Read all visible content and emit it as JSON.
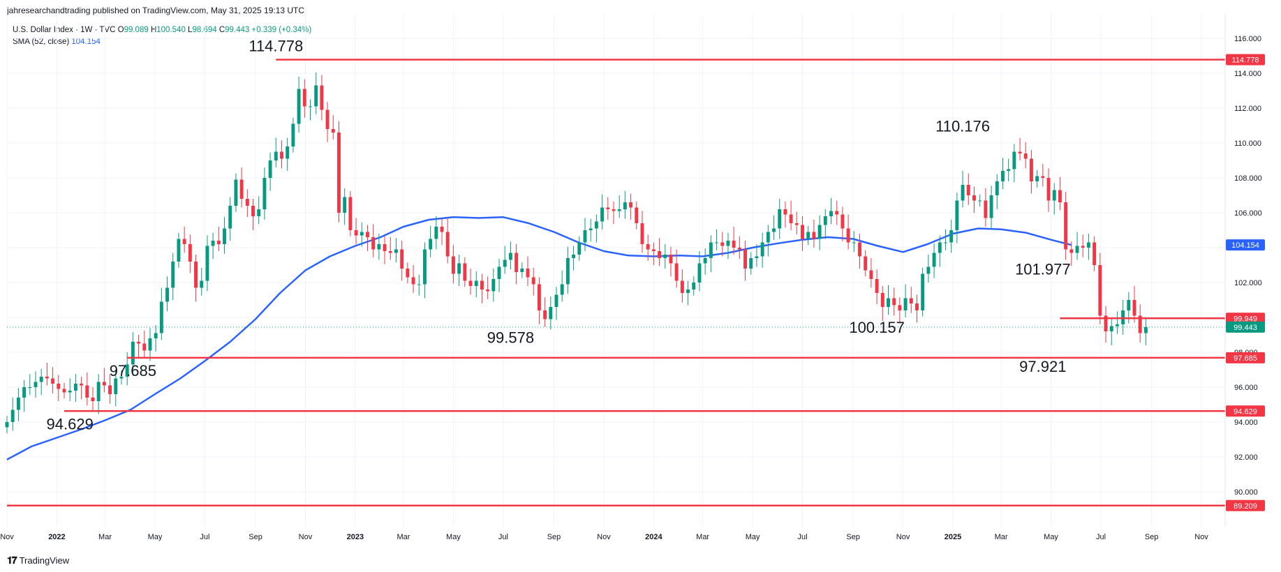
{
  "header": {
    "published": "jahresearchandtrading published on TradingView.com, May 31, 2025 19:13 UTC"
  },
  "legend": {
    "symbol": "U.S. Dollar Index · 1W · TVC",
    "open_label": "O",
    "open": "99.089",
    "high_label": "H",
    "high": "100.540",
    "low_label": "L",
    "low": "98.694",
    "close_label": "C",
    "close": "99.443",
    "change": "+0.339 (+0.34%)",
    "sma_label": "SMA (52, close)",
    "sma_value": "104.154"
  },
  "footer": {
    "brand": "TradingView",
    "brand_icon": "tradingview-logo-icon"
  },
  "colors": {
    "up": "#089981",
    "down": "#f23645",
    "sma": "#2962ff",
    "level": "#f23645",
    "grid": "#f0f3fa",
    "price_dotted": "#089981"
  },
  "chart_data": {
    "type": "candlestick",
    "ylim": [
      88.0,
      117.0
    ],
    "time_range": [
      "2021-11-01",
      "2025-11-30"
    ],
    "y_ticks": [
      "90.000",
      "92.000",
      "94.000",
      "96.000",
      "98.000",
      "100.000",
      "102.000",
      "104.000",
      "106.000",
      "108.000",
      "110.000",
      "112.000",
      "114.000",
      "116.000"
    ],
    "x_ticks": [
      {
        "label": "Nov",
        "date": "2021-11-01"
      },
      {
        "label": "2022",
        "date": "2022-01-01"
      },
      {
        "label": "Mar",
        "date": "2022-03-01"
      },
      {
        "label": "May",
        "date": "2022-05-01"
      },
      {
        "label": "Jul",
        "date": "2022-07-01"
      },
      {
        "label": "Sep",
        "date": "2022-09-01"
      },
      {
        "label": "Nov",
        "date": "2022-11-01"
      },
      {
        "label": "2023",
        "date": "2023-01-01"
      },
      {
        "label": "Mar",
        "date": "2023-03-01"
      },
      {
        "label": "May",
        "date": "2023-05-01"
      },
      {
        "label": "Jul",
        "date": "2023-07-01"
      },
      {
        "label": "Sep",
        "date": "2023-09-01"
      },
      {
        "label": "Nov",
        "date": "2023-11-01"
      },
      {
        "label": "2024",
        "date": "2024-01-01"
      },
      {
        "label": "Mar",
        "date": "2024-03-01"
      },
      {
        "label": "May",
        "date": "2024-05-01"
      },
      {
        "label": "Jul",
        "date": "2024-07-01"
      },
      {
        "label": "Sep",
        "date": "2024-09-01"
      },
      {
        "label": "Nov",
        "date": "2024-11-01"
      },
      {
        "label": "2025",
        "date": "2025-01-01"
      },
      {
        "label": "Mar",
        "date": "2025-03-01"
      },
      {
        "label": "May",
        "date": "2025-05-01"
      },
      {
        "label": "Jul",
        "date": "2025-07-01"
      },
      {
        "label": "Sep",
        "date": "2025-09-01"
      },
      {
        "label": "Nov",
        "date": "2025-11-01"
      }
    ],
    "levels": [
      {
        "value": 114.778,
        "label": "114.778",
        "from": "2022-09-26"
      },
      {
        "value": 99.949,
        "label": "99.949",
        "from": "2025-05-12"
      },
      {
        "value": 97.685,
        "label": "97.685",
        "from": "2022-03-28"
      },
      {
        "value": 94.629,
        "label": "94.629",
        "from": "2022-01-10"
      },
      {
        "value": 89.209,
        "label": "89.209",
        "from": "2021-11-01"
      }
    ],
    "current_price": {
      "value": 99.443,
      "label": "99.443"
    },
    "sma_current": {
      "value": 104.154,
      "label": "104.154"
    },
    "annotations": [
      {
        "text": "114.778",
        "date": "2022-09-26",
        "value": 114.778,
        "pos": "above"
      },
      {
        "text": "110.176",
        "date": "2025-01-13",
        "value": 110.176,
        "pos": "above"
      },
      {
        "text": "101.977",
        "date": "2025-04-21",
        "value": 101.977,
        "pos": "above"
      },
      {
        "text": "97.685",
        "date": "2022-04-04",
        "value": 97.685,
        "pos": "below"
      },
      {
        "text": "94.629",
        "date": "2022-01-17",
        "value": 94.629,
        "pos": "below"
      },
      {
        "text": "99.578",
        "date": "2023-07-10",
        "value": 99.578,
        "pos": "below"
      },
      {
        "text": "100.157",
        "date": "2024-09-30",
        "value": 100.157,
        "pos": "below"
      },
      {
        "text": "97.921",
        "date": "2025-04-21",
        "value": 97.921,
        "pos": "below"
      }
    ],
    "sma": [
      [
        "2021-11-01",
        91.85
      ],
      [
        "2021-12-01",
        92.6
      ],
      [
        "2022-01-01",
        93.1
      ],
      [
        "2022-02-01",
        93.6
      ],
      [
        "2022-03-01",
        94.1
      ],
      [
        "2022-04-01",
        94.7
      ],
      [
        "2022-05-01",
        95.6
      ],
      [
        "2022-06-01",
        96.5
      ],
      [
        "2022-07-01",
        97.5
      ],
      [
        "2022-08-01",
        98.6
      ],
      [
        "2022-09-01",
        99.9
      ],
      [
        "2022-10-01",
        101.4
      ],
      [
        "2022-11-01",
        102.7
      ],
      [
        "2022-12-01",
        103.5
      ],
      [
        "2023-01-01",
        104.1
      ],
      [
        "2023-02-01",
        104.6
      ],
      [
        "2023-03-01",
        105.2
      ],
      [
        "2023-04-01",
        105.6
      ],
      [
        "2023-05-01",
        105.75
      ],
      [
        "2023-06-01",
        105.7
      ],
      [
        "2023-07-01",
        105.75
      ],
      [
        "2023-08-01",
        105.4
      ],
      [
        "2023-09-01",
        104.9
      ],
      [
        "2023-10-01",
        104.3
      ],
      [
        "2023-11-01",
        103.8
      ],
      [
        "2023-12-01",
        103.55
      ],
      [
        "2024-01-01",
        103.5
      ],
      [
        "2024-02-01",
        103.55
      ],
      [
        "2024-03-01",
        103.5
      ],
      [
        "2024-04-01",
        103.7
      ],
      [
        "2024-05-01",
        104.0
      ],
      [
        "2024-06-01",
        104.25
      ],
      [
        "2024-07-01",
        104.45
      ],
      [
        "2024-08-01",
        104.6
      ],
      [
        "2024-09-01",
        104.5
      ],
      [
        "2024-10-01",
        104.1
      ],
      [
        "2024-11-01",
        103.75
      ],
      [
        "2024-12-01",
        104.2
      ],
      [
        "2025-01-01",
        104.8
      ],
      [
        "2025-02-01",
        105.1
      ],
      [
        "2025-03-01",
        105.05
      ],
      [
        "2025-04-01",
        104.85
      ],
      [
        "2025-05-01",
        104.45
      ],
      [
        "2025-05-26",
        104.15
      ]
    ],
    "weekly_closes": [
      94.0,
      94.7,
      95.4,
      96.0,
      96.0,
      96.3,
      96.6,
      96.5,
      96.2,
      95.9,
      95.7,
      95.8,
      96.2,
      96.1,
      95.4,
      95.2,
      96.3,
      96.1,
      95.6,
      96.5,
      96.6,
      97.3,
      98.6,
      98.5,
      98.1,
      98.8,
      99.1,
      100.9,
      101.7,
      103.2,
      104.5,
      104.2,
      103.2,
      101.7,
      102.1,
      104.1,
      104.4,
      104.2,
      105.1,
      106.4,
      107.9,
      106.8,
      106.4,
      105.8,
      106.2,
      108.0,
      109.0,
      109.5,
      109.1,
      109.8,
      111.1,
      113.1,
      112.1,
      112.1,
      113.3,
      111.9,
      110.8,
      110.6,
      106.0,
      106.9,
      105.0,
      104.7,
      104.9,
      104.6,
      103.9,
      104.2,
      103.8,
      103.7,
      103.9,
      102.8,
      102.3,
      101.9,
      101.9,
      103.9,
      104.5,
      105.2,
      104.9,
      103.5,
      102.5,
      103.1,
      102.1,
      101.8,
      102.1,
      101.6,
      101.5,
      102.2,
      102.9,
      103.3,
      103.7,
      102.6,
      102.8,
      102.3,
      101.9,
      100.4,
      99.9,
      100.6,
      101.3,
      101.9,
      103.4,
      103.6,
      104.3,
      105.0,
      105.1,
      105.5,
      106.3,
      106.2,
      106.1,
      106.2,
      106.6,
      106.3,
      105.4,
      104.2,
      103.9,
      103.8,
      103.4,
      103.6,
      103.1,
      102.1,
      101.4,
      101.6,
      102.0,
      103.1,
      103.4,
      104.3,
      104.3,
      104.1,
      104.4,
      104.0,
      103.9,
      102.8,
      103.4,
      103.5,
      104.3,
      104.9,
      105.1,
      106.2,
      105.9,
      105.4,
      105.3,
      104.5,
      104.9,
      104.5,
      105.3,
      105.8,
      106.1,
      105.9,
      105.1,
      104.3,
      104.3,
      103.5,
      102.7,
      102.2,
      101.4,
      100.6,
      101.1,
      100.7,
      100.4,
      101.1,
      100.8,
      100.4,
      102.5,
      102.9,
      103.7,
      104.3,
      104.3,
      105.0,
      106.7,
      107.6,
      107.0,
      106.7,
      106.7,
      105.7,
      107.0,
      107.8,
      108.4,
      108.5,
      109.5,
      109.4,
      109.1,
      107.8,
      108.1,
      108.0,
      106.7,
      107.3,
      106.6,
      103.9,
      103.7,
      104.1,
      104.0,
      104.3,
      103.0,
      100.1,
      99.2,
      99.5,
      99.6,
      100.4,
      101.0,
      100.1,
      99.1,
      99.443
    ]
  }
}
